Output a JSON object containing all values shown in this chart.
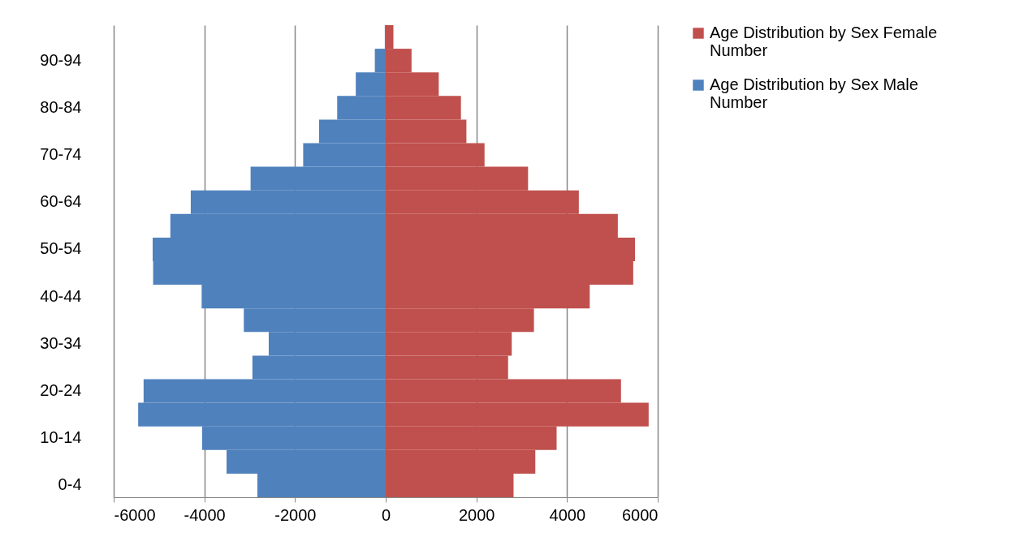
{
  "chart_data": {
    "type": "bar",
    "orientation": "horizontal",
    "categories": [
      null,
      "90-94",
      null,
      "80-84",
      null,
      "70-74",
      null,
      "60-64",
      null,
      "50-54",
      null,
      "40-44",
      null,
      "30-34",
      null,
      "20-24",
      null,
      "10-14",
      null,
      "0-4"
    ],
    "series": [
      {
        "name": "Age Distribution by Sex Female Number",
        "color": "#c0504d",
        "values": [
          170,
          570,
          1170,
          1660,
          1780,
          2180,
          3140,
          4260,
          5120,
          5500,
          5460,
          4500,
          3270,
          2780,
          2700,
          5190,
          5800,
          3770,
          3300,
          2820
        ]
      },
      {
        "name": "Age Distribution by Sex Male Number",
        "color": "#4f81bd",
        "values": [
          -20,
          -240,
          -660,
          -1070,
          -1470,
          -1820,
          -2980,
          -4300,
          -4750,
          -5140,
          -5130,
          -4060,
          -3130,
          -2580,
          -2940,
          -5340,
          -5460,
          -4050,
          -3510,
          -2830
        ]
      }
    ],
    "xlim": [
      -6000,
      6000
    ],
    "xticks": [
      -6000,
      -4000,
      -2000,
      0,
      2000,
      4000,
      6000
    ],
    "grid": "x",
    "legend": "right",
    "stacked": true
  }
}
